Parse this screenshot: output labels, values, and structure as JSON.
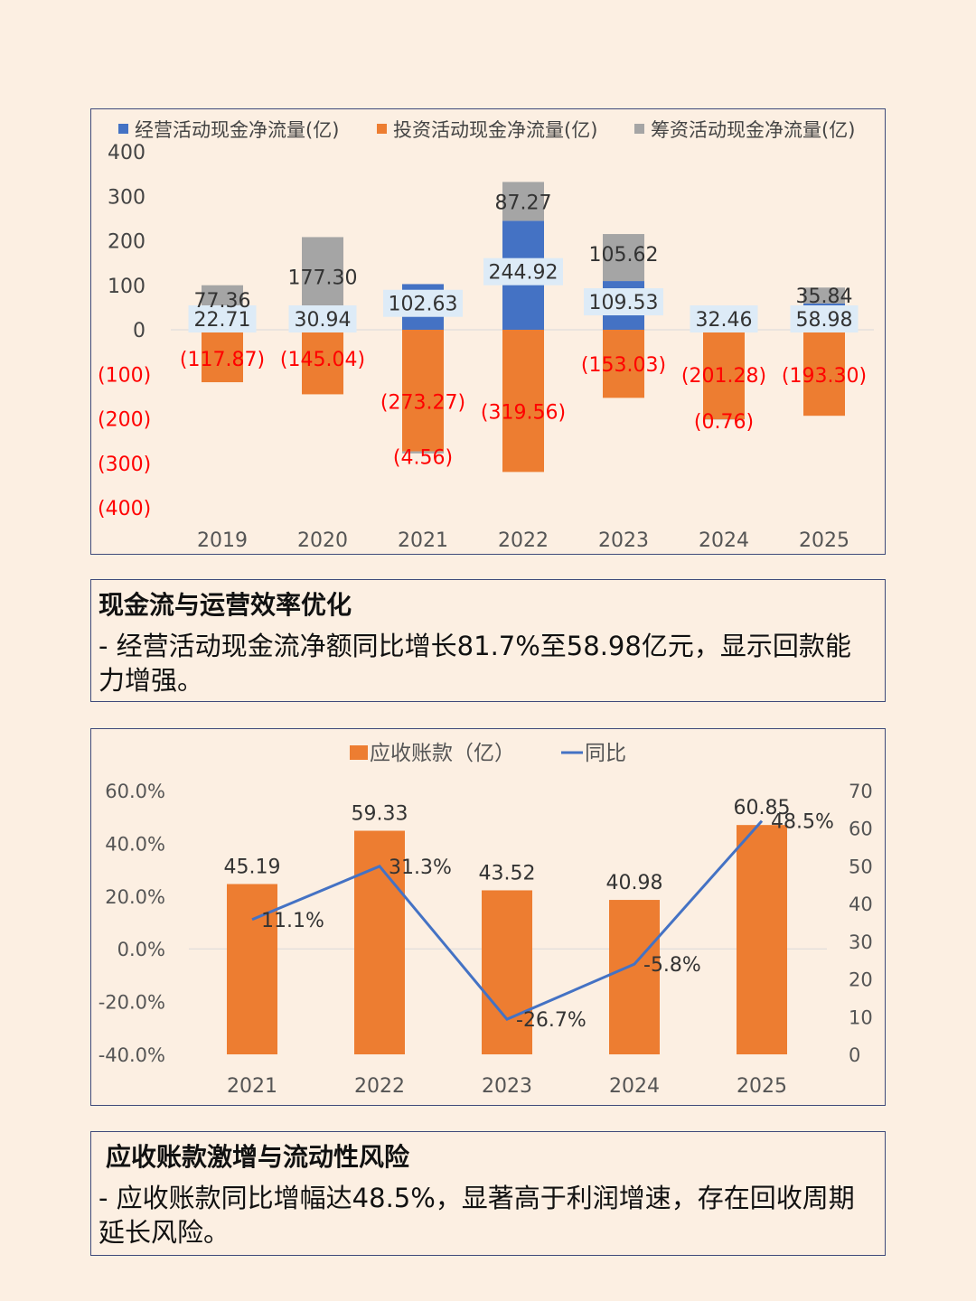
{
  "colors": {
    "operating": "#4472c4",
    "investing": "#ed7d31",
    "financing": "#a5a5a5",
    "negative_label": "#ff0000",
    "line": "#4472c4",
    "label_bg": "#ddebf7"
  },
  "chart_data": [
    {
      "type": "bar",
      "stacked": true,
      "title": "",
      "categories": [
        "2019",
        "2020",
        "2021",
        "2022",
        "2023",
        "2024",
        "2025"
      ],
      "series": [
        {
          "name": "经营活动现金净流量(亿)",
          "values": [
            22.71,
            30.94,
            102.63,
            244.92,
            109.53,
            32.46,
            58.98
          ],
          "labels": [
            "22.71",
            "30.94",
            "102.63",
            "244.92",
            "109.53",
            "32.46",
            "58.98"
          ]
        },
        {
          "name": "投资活动现金净流量(亿)",
          "values": [
            -117.87,
            -145.04,
            -273.27,
            -319.56,
            -153.03,
            -201.28,
            -193.3
          ],
          "labels": [
            "(117.87)",
            "(145.04)",
            "(273.27)",
            "(319.56)",
            "(153.03)",
            "(201.28)",
            "(193.30)"
          ]
        },
        {
          "name": "筹资活动现金净流量(亿)",
          "values": [
            77.36,
            177.3,
            -4.56,
            87.27,
            105.62,
            -0.76,
            35.84
          ],
          "labels": [
            "77.36",
            "177.30",
            "(4.56)",
            "87.27",
            "105.62",
            "(0.76)",
            "35.84"
          ]
        }
      ],
      "ylim": [
        -400,
        400
      ],
      "yticks": [
        400,
        300,
        200,
        100,
        0,
        -100,
        -200,
        -300,
        -400
      ],
      "ytick_labels": [
        "400",
        "300",
        "200",
        "100",
        "0",
        "(100)",
        "(200)",
        "(300)",
        "(400)"
      ],
      "legend": "top"
    },
    {
      "type": "bar+line",
      "title": "",
      "categories": [
        "2021",
        "2022",
        "2023",
        "2024",
        "2025"
      ],
      "bar_series": {
        "name": "应收账款（亿）",
        "values": [
          45.19,
          59.33,
          43.52,
          40.98,
          60.85
        ],
        "labels": [
          "45.19",
          "59.33",
          "43.52",
          "40.98",
          "60.85"
        ]
      },
      "line_series": {
        "name": "同比",
        "values": [
          11.1,
          31.3,
          -26.7,
          -5.8,
          48.5
        ],
        "labels": [
          "11.1%",
          "31.3%",
          "-26.7%",
          "-5.8%",
          "48.5%"
        ]
      },
      "left_axis": {
        "ylim": [
          -40,
          60
        ],
        "ticks": [
          60,
          40,
          20,
          0,
          -20,
          -40
        ],
        "tick_labels": [
          "60.0%",
          "40.0%",
          "20.0%",
          "0.0%",
          "-20.0%",
          "-40.0%"
        ]
      },
      "right_axis": {
        "ylim": [
          0,
          70
        ],
        "ticks": [
          70,
          60,
          50,
          40,
          30,
          20,
          10,
          0
        ],
        "tick_labels": [
          "70",
          "60",
          "50",
          "40",
          "30",
          "20",
          "10",
          "0"
        ]
      },
      "legend": "top"
    }
  ],
  "section1": {
    "title": "现金流与运营效率优化",
    "body": "- 经营活动现金流净额同比增长81.7%至58.98亿元，显示回款能力增强。"
  },
  "section2": {
    "title": "应收账款激增与流动性风险",
    "body": "- 应收账款同比增幅达48.5%，显著高于利润增速，存在回收周期延长风险。"
  }
}
